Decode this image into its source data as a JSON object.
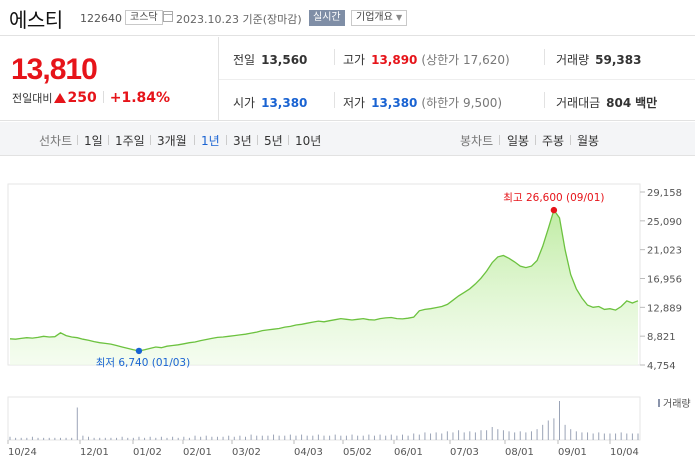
{
  "header": {
    "name": "에스티",
    "code": "122640",
    "market": "코스닥",
    "date": "2023.10.23",
    "basis": "기준(장마감)",
    "realtime": "실시간",
    "company_info": "기업개요"
  },
  "quote": {
    "price": "13,810",
    "prev_label": "전일대비",
    "change": "250",
    "change_pct": "+1.84%",
    "prev_close": {
      "label": "전일",
      "value": "13,560"
    },
    "high": {
      "label": "고가",
      "value": "13,890",
      "limit": "(상한가 17,620)"
    },
    "volume": {
      "label": "거래량",
      "value": "59,383"
    },
    "open": {
      "label": "시가",
      "value": "13,380"
    },
    "low": {
      "label": "저가",
      "value": "13,380",
      "limit": "(하한가 9,500)"
    },
    "amount": {
      "label": "거래대금",
      "value": "804",
      "unit": "백만"
    }
  },
  "tabs": {
    "line_label": "선차트",
    "periods": [
      "1일",
      "1주일",
      "3개월",
      "1년",
      "3년",
      "5년",
      "10년"
    ],
    "selected": "1년",
    "candle_label": "봉차트",
    "candles": [
      "일봉",
      "주봉",
      "월봉"
    ]
  },
  "colors": {
    "up": "#e6141a",
    "down": "#1a63d2",
    "line": "#6cc23f"
  },
  "chart_data": {
    "type": "area",
    "y_ticks": [
      "29,158",
      "25,090",
      "21,023",
      "16,956",
      "12,889",
      "8,821",
      "4,754"
    ],
    "ylim": [
      4754,
      29158
    ],
    "x_ticks": [
      "10/24",
      "12/01",
      "01/02",
      "02/01",
      "03/02",
      "04/03",
      "05/02",
      "06/01",
      "07/03",
      "08/01",
      "09/01",
      "10/04"
    ],
    "max_label": "최고 26,600 (09/01)",
    "min_label": "최저 6,740 (01/03)",
    "volume_label": "거래량",
    "series": [
      {
        "values": [
          8450,
          8400,
          8500,
          8600,
          8550,
          8650,
          8800,
          8700,
          8750,
          9300,
          8900,
          8700,
          8600,
          8400,
          8250,
          8050,
          7900,
          7800,
          7700,
          7500,
          7300,
          7100,
          6900,
          6740,
          6900,
          7100,
          7300,
          7200,
          7400,
          7500,
          7600,
          7750,
          7900,
          8000,
          8200,
          8350,
          8500,
          8650,
          8700,
          8800,
          8900,
          9000,
          9100,
          9250,
          9400,
          9600,
          9700,
          9800,
          9900,
          10100,
          10200,
          10400,
          10500,
          10650,
          10800,
          10950,
          10850,
          11000,
          11150,
          11300,
          11200,
          11100,
          11200,
          11300,
          11150,
          11100,
          11300,
          11400,
          11450,
          11300,
          11250,
          11350,
          11500,
          12400,
          12600,
          12700,
          12850,
          13000,
          13300,
          13900,
          14500,
          15000,
          15500,
          16200,
          17000,
          18000,
          19200,
          20000,
          20200,
          19800,
          19300,
          18700,
          18500,
          18700,
          19500,
          21500,
          24000,
          26600,
          25500,
          21000,
          17500,
          15500,
          14200,
          13200,
          12900,
          13000,
          12600,
          12700,
          12500,
          13000,
          13800,
          13500,
          13810
        ]
      }
    ],
    "volume": [
      3,
      2,
      2,
      2,
      3,
      2,
      2,
      2,
      2,
      2,
      2,
      2,
      30,
      4,
      3,
      2,
      2,
      2,
      2,
      2,
      3,
      2,
      2,
      3,
      2,
      3,
      2,
      3,
      2,
      3,
      2,
      3,
      2,
      4,
      3,
      4,
      3,
      3,
      3,
      4,
      3,
      4,
      3,
      5,
      4,
      4,
      4,
      5,
      4,
      4,
      5,
      4,
      5,
      4,
      4,
      5,
      4,
      4,
      5,
      4,
      4,
      5,
      4,
      4,
      5,
      4,
      5,
      4,
      5,
      4,
      5,
      4,
      6,
      5,
      7,
      6,
      7,
      6,
      8,
      7,
      9,
      7,
      8,
      7,
      9,
      9,
      12,
      10,
      9,
      8,
      7,
      8,
      7,
      8,
      10,
      14,
      18,
      20,
      36,
      14,
      10,
      8,
      7,
      7,
      6,
      7,
      6,
      6,
      6,
      7,
      6,
      6,
      6
    ]
  }
}
